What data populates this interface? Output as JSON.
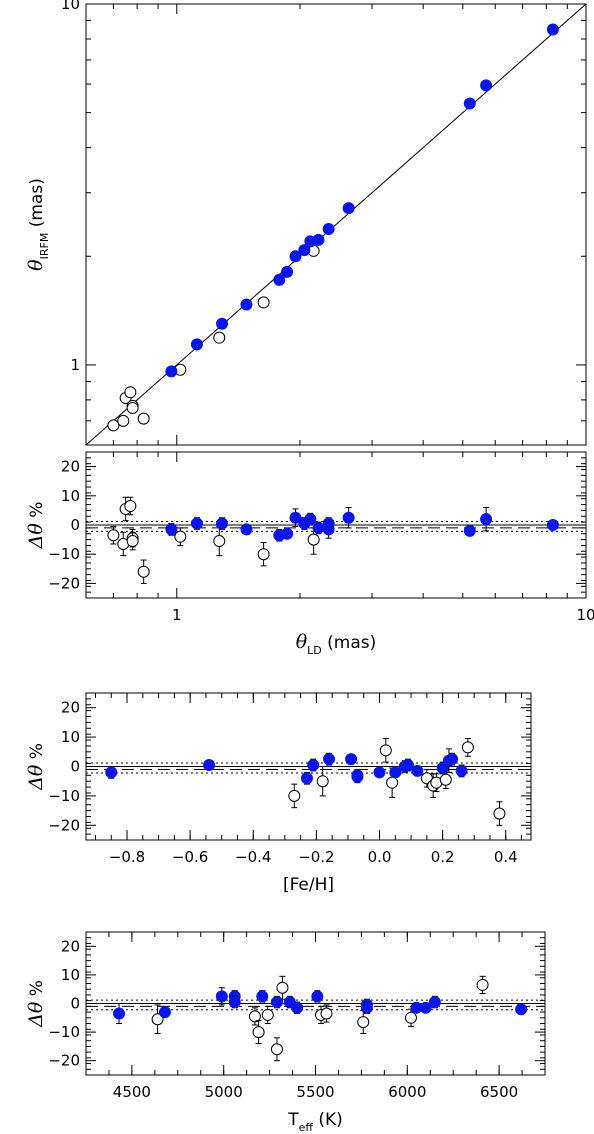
{
  "colors": {
    "filled": "#0a16e6",
    "open": "#000000",
    "axis": "#000000"
  },
  "chart_data": [
    {
      "id": "top",
      "type": "scatter",
      "xscale": "log",
      "yscale": "log",
      "xlim": [
        0.6,
        10
      ],
      "ylim": [
        0.6,
        10
      ],
      "xticks": [
        {
          "v": 1,
          "label": "1"
        },
        {
          "v": 10,
          "label": "10"
        }
      ],
      "yticks": [
        {
          "v": 1,
          "label": "1"
        },
        {
          "v": 10,
          "label": "10"
        }
      ],
      "ylabel": {
        "symbol": "θ",
        "sub": "IRFM",
        "text": "(mas)"
      },
      "reference_line": "y = x",
      "series": [
        {
          "marker": "filled",
          "points": [
            {
              "x": 0.97,
              "y": 0.96
            },
            {
              "x": 1.12,
              "y": 1.14
            },
            {
              "x": 1.29,
              "y": 1.3
            },
            {
              "x": 1.48,
              "y": 1.47
            },
            {
              "x": 1.78,
              "y": 1.72
            },
            {
              "x": 1.86,
              "y": 1.81
            },
            {
              "x": 1.95,
              "y": 2.0
            },
            {
              "x": 2.05,
              "y": 2.08
            },
            {
              "x": 2.12,
              "y": 2.2
            },
            {
              "x": 2.22,
              "y": 2.22
            },
            {
              "x": 2.35,
              "y": 2.38
            },
            {
              "x": 2.63,
              "y": 2.72
            },
            {
              "x": 5.2,
              "y": 5.3
            },
            {
              "x": 5.7,
              "y": 5.95
            },
            {
              "x": 8.3,
              "y": 8.5
            }
          ]
        },
        {
          "marker": "open",
          "points": [
            {
              "x": 0.7,
              "y": 0.68
            },
            {
              "x": 0.74,
              "y": 0.7
            },
            {
              "x": 0.75,
              "y": 0.81
            },
            {
              "x": 0.77,
              "y": 0.84
            },
            {
              "x": 0.78,
              "y": 0.77
            },
            {
              "x": 0.78,
              "y": 0.76
            },
            {
              "x": 0.83,
              "y": 0.71
            },
            {
              "x": 1.02,
              "y": 0.97
            },
            {
              "x": 1.27,
              "y": 1.19
            },
            {
              "x": 1.63,
              "y": 1.49
            },
            {
              "x": 2.16,
              "y": 2.07
            }
          ]
        }
      ]
    },
    {
      "id": "resid-theta",
      "type": "scatter",
      "xscale": "log",
      "xlim": [
        0.6,
        10
      ],
      "ylim": [
        -25,
        25
      ],
      "xticks": [
        {
          "v": 1,
          "label": "1"
        },
        {
          "v": 10,
          "label": "10"
        }
      ],
      "yticks": [
        {
          "v": 20,
          "label": "20"
        },
        {
          "v": 10,
          "label": "10"
        },
        {
          "v": 0,
          "label": "0"
        },
        {
          "v": -10,
          "label": "−10"
        },
        {
          "v": -20,
          "label": "−20"
        }
      ],
      "xlabel": {
        "symbol": "θ",
        "sub": "LD",
        "text": "(mas)"
      },
      "ylabel": {
        "symbol": "Δθ",
        "text": "%"
      },
      "hlines": {
        "solid": 0,
        "dashed": -1,
        "dotted": [
          1.2,
          -2.2
        ]
      },
      "series": [
        {
          "marker": "filled",
          "points": [
            {
              "x": 0.97,
              "y": -1.5,
              "e": 2
            },
            {
              "x": 1.12,
              "y": 0.5,
              "e": 2
            },
            {
              "x": 1.29,
              "y": 0.5,
              "e": 2
            },
            {
              "x": 1.48,
              "y": -1.5,
              "e": 1
            },
            {
              "x": 1.78,
              "y": -3.5,
              "e": 2
            },
            {
              "x": 1.86,
              "y": -3.0,
              "e": 1.5
            },
            {
              "x": 1.95,
              "y": 2.5,
              "e": 3
            },
            {
              "x": 2.05,
              "y": 0.5,
              "e": 2
            },
            {
              "x": 2.12,
              "y": 2.0,
              "e": 2
            },
            {
              "x": 2.22,
              "y": -1.0,
              "e": 2
            },
            {
              "x": 2.35,
              "y": -1.5,
              "e": 3
            },
            {
              "x": 2.35,
              "y": 0.5,
              "e": 2
            },
            {
              "x": 2.63,
              "y": 2.5,
              "e": 3.5
            },
            {
              "x": 5.2,
              "y": -2.0,
              "e": 1
            },
            {
              "x": 5.7,
              "y": 2.0,
              "e": 4
            },
            {
              "x": 8.3,
              "y": 0.0,
              "e": 1
            }
          ]
        },
        {
          "marker": "open",
          "points": [
            {
              "x": 0.7,
              "y": -3.5,
              "e": 3
            },
            {
              "x": 0.74,
              "y": -6.5,
              "e": 4
            },
            {
              "x": 0.75,
              "y": 5.5,
              "e": 4
            },
            {
              "x": 0.77,
              "y": 6.5,
              "e": 3
            },
            {
              "x": 0.78,
              "y": -4.5,
              "e": 3
            },
            {
              "x": 0.78,
              "y": -5.5,
              "e": 3
            },
            {
              "x": 0.83,
              "y": -16.0,
              "e": 4
            },
            {
              "x": 1.02,
              "y": -4.0,
              "e": 3
            },
            {
              "x": 1.27,
              "y": -5.5,
              "e": 5
            },
            {
              "x": 1.63,
              "y": -10.0,
              "e": 4
            },
            {
              "x": 2.16,
              "y": -5.0,
              "e": 5
            }
          ]
        }
      ]
    },
    {
      "id": "resid-feh",
      "type": "scatter",
      "xlim": [
        -0.93,
        0.48
      ],
      "ylim": [
        -25,
        25
      ],
      "xticks": [
        {
          "v": -0.8,
          "label": "−0.8"
        },
        {
          "v": -0.6,
          "label": "−0.6"
        },
        {
          "v": -0.4,
          "label": "−0.4"
        },
        {
          "v": -0.2,
          "label": "−0.2"
        },
        {
          "v": 0,
          "label": "0.0"
        },
        {
          "v": 0.2,
          "label": "0.2"
        },
        {
          "v": 0.4,
          "label": "0.4"
        }
      ],
      "yticks": [
        {
          "v": 20,
          "label": "20"
        },
        {
          "v": 10,
          "label": "10"
        },
        {
          "v": 0,
          "label": "0"
        },
        {
          "v": -10,
          "label": "−10"
        },
        {
          "v": -20,
          "label": "−20"
        }
      ],
      "xlabel": {
        "text": "[Fe/H]"
      },
      "ylabel": {
        "symbol": "Δθ",
        "text": "%"
      },
      "hlines": {
        "solid": 0,
        "dashed": -1,
        "dotted": [
          1.2,
          -2.2
        ]
      },
      "series": [
        {
          "marker": "filled",
          "points": [
            {
              "x": -0.85,
              "y": -2.0,
              "e": 2
            },
            {
              "x": -0.54,
              "y": 0.5,
              "e": 1.5
            },
            {
              "x": -0.23,
              "y": -4.0,
              "e": 2
            },
            {
              "x": -0.21,
              "y": 0.5,
              "e": 2
            },
            {
              "x": -0.16,
              "y": 2.5,
              "e": 2
            },
            {
              "x": -0.09,
              "y": 2.5,
              "e": 1.5
            },
            {
              "x": -0.07,
              "y": -3.5,
              "e": 2
            },
            {
              "x": -0.07,
              "y": -3.0,
              "e": 2
            },
            {
              "x": 0.0,
              "y": -2.0,
              "e": 1.5
            },
            {
              "x": 0.05,
              "y": -2.0,
              "e": 1.5
            },
            {
              "x": 0.08,
              "y": 0.0,
              "e": 2
            },
            {
              "x": 0.09,
              "y": 0.5,
              "e": 2
            },
            {
              "x": 0.12,
              "y": -1.5,
              "e": 1.5
            },
            {
              "x": 0.2,
              "y": -0.5,
              "e": 2
            },
            {
              "x": 0.22,
              "y": 2.0,
              "e": 4
            },
            {
              "x": 0.23,
              "y": 2.5,
              "e": 2
            },
            {
              "x": 0.26,
              "y": -1.5,
              "e": 2
            }
          ]
        },
        {
          "marker": "open",
          "points": [
            {
              "x": -0.27,
              "y": -10.0,
              "e": 4
            },
            {
              "x": -0.18,
              "y": -5.0,
              "e": 5
            },
            {
              "x": 0.02,
              "y": 5.5,
              "e": 4
            },
            {
              "x": 0.04,
              "y": -5.5,
              "e": 5
            },
            {
              "x": 0.15,
              "y": -4.0,
              "e": 3
            },
            {
              "x": 0.17,
              "y": -6.5,
              "e": 4
            },
            {
              "x": 0.18,
              "y": -5.5,
              "e": 3
            },
            {
              "x": 0.21,
              "y": -4.5,
              "e": 3
            },
            {
              "x": 0.28,
              "y": 6.5,
              "e": 3
            },
            {
              "x": 0.38,
              "y": -16.0,
              "e": 4
            }
          ]
        }
      ]
    },
    {
      "id": "resid-teff",
      "type": "scatter",
      "xlim": [
        4250,
        6750
      ],
      "ylim": [
        -25,
        25
      ],
      "xticks": [
        {
          "v": 4500,
          "label": "4500"
        },
        {
          "v": 5000,
          "label": "5000"
        },
        {
          "v": 5500,
          "label": "5500"
        },
        {
          "v": 6000,
          "label": "6000"
        },
        {
          "v": 6500,
          "label": "6500"
        }
      ],
      "yticks": [
        {
          "v": 20,
          "label": "20"
        },
        {
          "v": 10,
          "label": "10"
        },
        {
          "v": 0,
          "label": "0"
        },
        {
          "v": -10,
          "label": "−10"
        },
        {
          "v": -20,
          "label": "−20"
        }
      ],
      "xlabel": {
        "symbol": "T",
        "sub": "eff",
        "text": "(K)"
      },
      "ylabel": {
        "symbol": "Δθ",
        "text": "%"
      },
      "hlines": {
        "solid": 0,
        "dashed": -1,
        "dotted": [
          1.2,
          -2.2
        ]
      },
      "series": [
        {
          "marker": "filled",
          "points": [
            {
              "x": 4430,
              "y": -3.5,
              "e": 3.5
            },
            {
              "x": 4680,
              "y": -3.0,
              "e": 1.5
            },
            {
              "x": 4990,
              "y": 2.5,
              "e": 3
            },
            {
              "x": 5060,
              "y": 2.5,
              "e": 2
            },
            {
              "x": 5060,
              "y": 0.5,
              "e": 2
            },
            {
              "x": 5210,
              "y": 2.5,
              "e": 2
            },
            {
              "x": 5290,
              "y": 0.5,
              "e": 2
            },
            {
              "x": 5360,
              "y": 0.5,
              "e": 2
            },
            {
              "x": 5400,
              "y": -1.5,
              "e": 2
            },
            {
              "x": 5510,
              "y": 2.5,
              "e": 2
            },
            {
              "x": 5780,
              "y": -0.5,
              "e": 2
            },
            {
              "x": 5780,
              "y": -1.5,
              "e": 2
            },
            {
              "x": 6050,
              "y": -1.5,
              "e": 1.5
            },
            {
              "x": 6100,
              "y": -1.5,
              "e": 1.5
            },
            {
              "x": 6150,
              "y": 0.5,
              "e": 2
            },
            {
              "x": 6620,
              "y": -2.0,
              "e": 1
            }
          ]
        },
        {
          "marker": "open",
          "points": [
            {
              "x": 4640,
              "y": -5.5,
              "e": 5
            },
            {
              "x": 5170,
              "y": -4.5,
              "e": 3
            },
            {
              "x": 5190,
              "y": -10.0,
              "e": 4
            },
            {
              "x": 5240,
              "y": -4.0,
              "e": 3
            },
            {
              "x": 5290,
              "y": -16.0,
              "e": 4
            },
            {
              "x": 5320,
              "y": 5.5,
              "e": 4
            },
            {
              "x": 5530,
              "y": -4.0,
              "e": 3
            },
            {
              "x": 5560,
              "y": -3.5,
              "e": 3
            },
            {
              "x": 5760,
              "y": -6.5,
              "e": 4
            },
            {
              "x": 6020,
              "y": -5.0,
              "e": 3
            },
            {
              "x": 6410,
              "y": 6.5,
              "e": 3
            }
          ]
        }
      ]
    }
  ]
}
